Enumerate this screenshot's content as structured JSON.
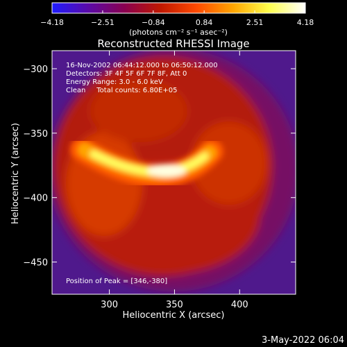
{
  "chart_data": {
    "type": "heatmap",
    "title": "Reconstructed RHESSI Image",
    "xlabel": "Heliocentric X (arcsec)",
    "ylabel": "Heliocentric Y (arcsec)",
    "xlim": [
      256,
      443
    ],
    "ylim": [
      -475,
      -286
    ],
    "xticks": [
      300,
      350,
      400
    ],
    "yticks": [
      -300,
      -350,
      -400,
      -450
    ],
    "colorbar": {
      "min": -4.18,
      "max": 4.18,
      "ticks": [
        "-4.18",
        "-2.51",
        "-0.84",
        "0.84",
        "2.51",
        "4.18"
      ],
      "unit_text": "(photons cm⁻² s⁻¹ asec⁻²)",
      "colors": [
        "#1f1cff",
        "#5a0aa8",
        "#8a0050",
        "#c01800",
        "#ff4a00",
        "#ffa500",
        "#ffff4d",
        "#ffffff"
      ]
    },
    "annotations": {
      "time": "16-Nov-2002 06:44:12.000 to 06:50:12.000",
      "detectors": "Detectors: 3F 4F 5F 6F 7F 8F, Att 0",
      "energy": "Energy Range: 3.0 - 6.0 keV",
      "method": "Clean     Total counts: 6.80E+05",
      "peak": "Position of Peak = [346,-380]"
    },
    "peak_position": [
      346,
      -380
    ],
    "background_color": "#5a1e9b"
  },
  "footer": {
    "timestamp": "3-May-2022 06:04"
  }
}
